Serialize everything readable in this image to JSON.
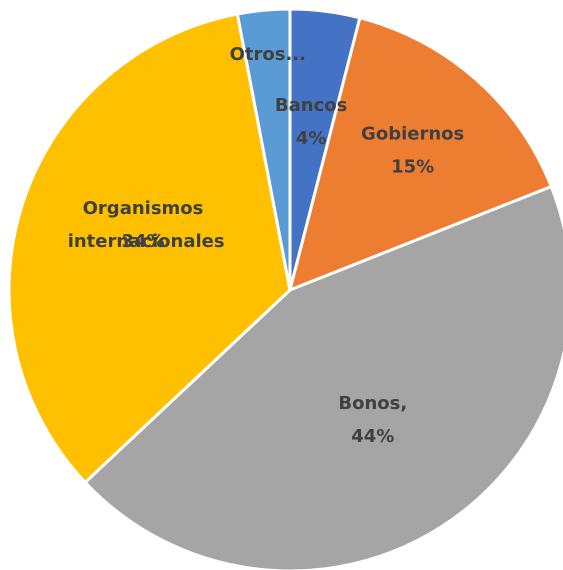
{
  "chart_data": {
    "type": "pie",
    "categories": [
      "Bancos",
      "Gobiernos",
      "Bonos,",
      "Organismos internacionales",
      "Otros..."
    ],
    "values": [
      4,
      15,
      44,
      34,
      3
    ],
    "value_labels": [
      "4%",
      "15%",
      "44%",
      "34%",
      null
    ],
    "colors": [
      "#4472c4",
      "#ed7d31",
      "#a5a5a5",
      "#ffc000",
      "#5b9bd5"
    ]
  }
}
